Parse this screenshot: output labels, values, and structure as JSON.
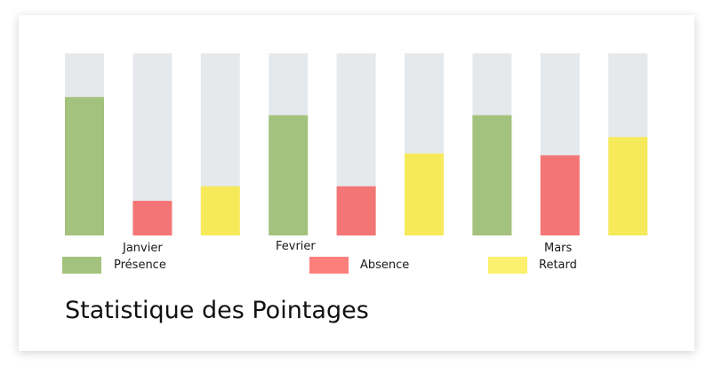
{
  "title": "Statistique des Pointages",
  "chart_data": {
    "type": "bar",
    "title": "Statistique des Pointages",
    "xlabel": "",
    "ylabel": "",
    "ylim": [
      0,
      100
    ],
    "grid": false,
    "legend_placement": "bottom",
    "track_color": "#e6e9ec",
    "categories": [
      "Janvier",
      "Fevrier",
      "Mars"
    ],
    "series": [
      {
        "name": "Présence",
        "color": "#a3c27d",
        "values": [
          76,
          66,
          66
        ]
      },
      {
        "name": "Absence",
        "color": "#f47575",
        "values": [
          19,
          27,
          44
        ]
      },
      {
        "name": "Retard",
        "color": "#f6ea5b",
        "values": [
          27,
          45,
          54
        ]
      }
    ]
  },
  "legend": [
    {
      "label": "Présence",
      "color": "#a3c27d"
    },
    {
      "label": "Absence",
      "color": "#fd7f7c"
    },
    {
      "label": "Retard",
      "color": "#fdf06e"
    }
  ]
}
